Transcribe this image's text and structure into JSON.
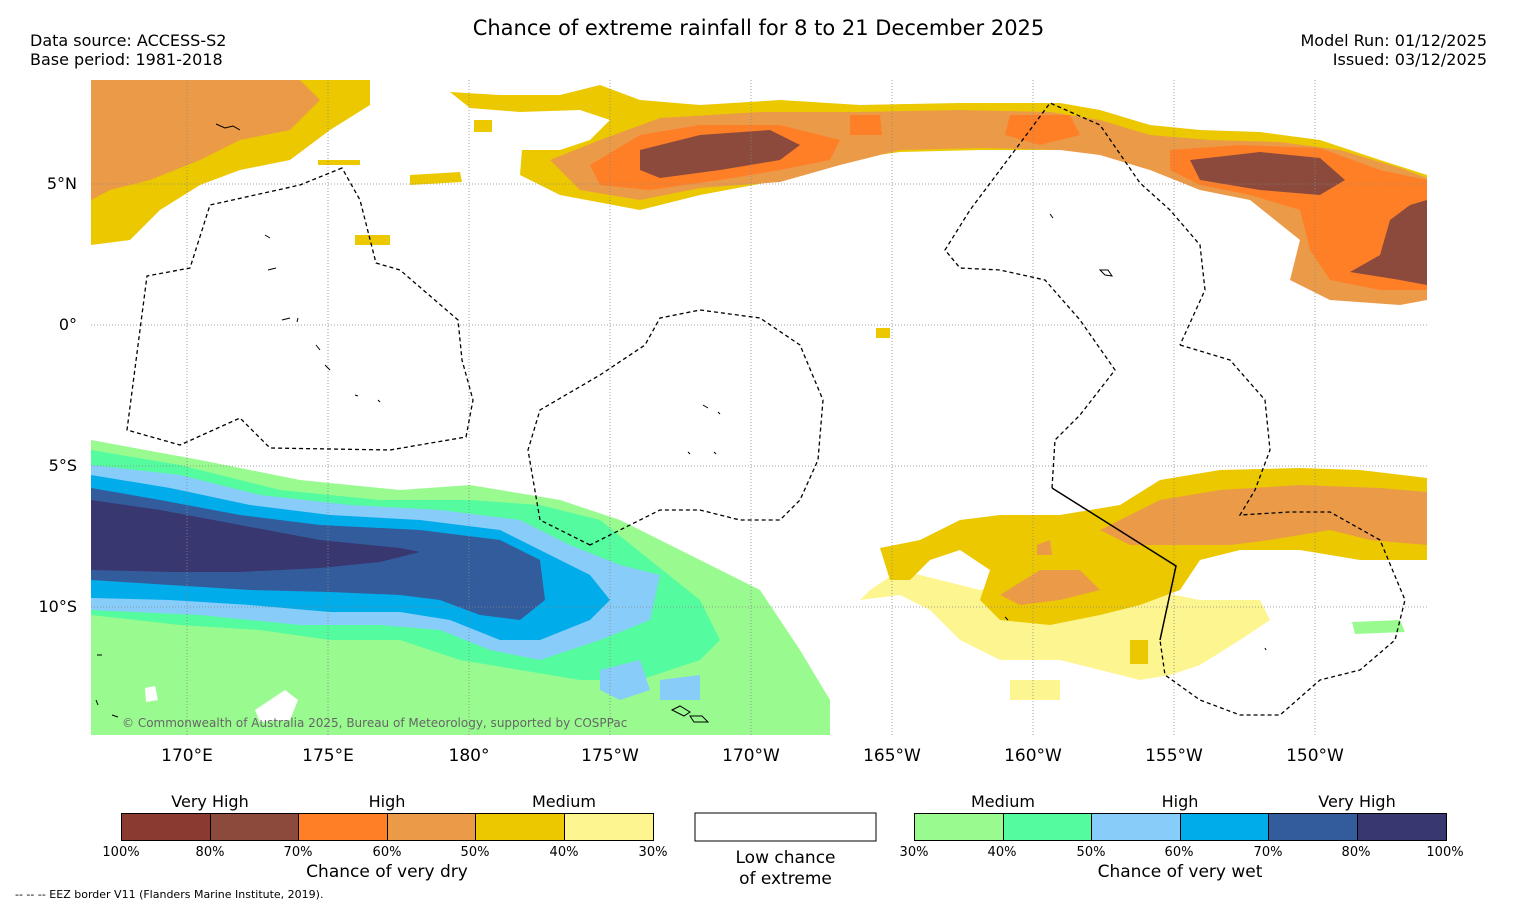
{
  "title": "Chance of extreme rainfall for 8 to 21 December 2025",
  "data_source": "Data source: ACCESS-S2",
  "base_period": "Base period: 1981-2018",
  "model_run": "Model Run: 01/12/2025",
  "issued": "Issued: 03/12/2025",
  "copyright": "© Commonwealth of Australia 2025, Bureau of Meteorology, supported by COSPPac",
  "footnote": "--  --  -- EEZ border V11 (Flanders Marine Institute, 2019).",
  "lat_labels": [
    "5°N",
    "0°",
    "5°S",
    "10°S"
  ],
  "lon_labels": [
    "170°E",
    "175°E",
    "180°",
    "175°W",
    "170°W",
    "165°W",
    "160°W",
    "155°W",
    "150°W"
  ],
  "dry_legend": {
    "levels": [
      "Very High",
      "High",
      "Medium"
    ],
    "ticks": [
      "100%",
      "80%",
      "70%",
      "60%",
      "50%",
      "40%",
      "30%"
    ],
    "caption": "Chance of very dry",
    "colors": [
      "#8b3a32",
      "#8b4a3c",
      "#ff7f27",
      "#eb9b48",
      "#ecc800",
      "#fdf590"
    ]
  },
  "low_legend": {
    "caption_line1": "Low chance",
    "caption_line2": "of extreme"
  },
  "wet_legend": {
    "levels": [
      "Medium",
      "High",
      "Very High"
    ],
    "ticks": [
      "30%",
      "40%",
      "50%",
      "60%",
      "70%",
      "80%",
      "100%"
    ],
    "caption": "Chance of very wet",
    "colors": [
      "#99fb8f",
      "#55fb9f",
      "#88ccfa",
      "#00adea",
      "#335c9c",
      "#383770"
    ]
  }
}
